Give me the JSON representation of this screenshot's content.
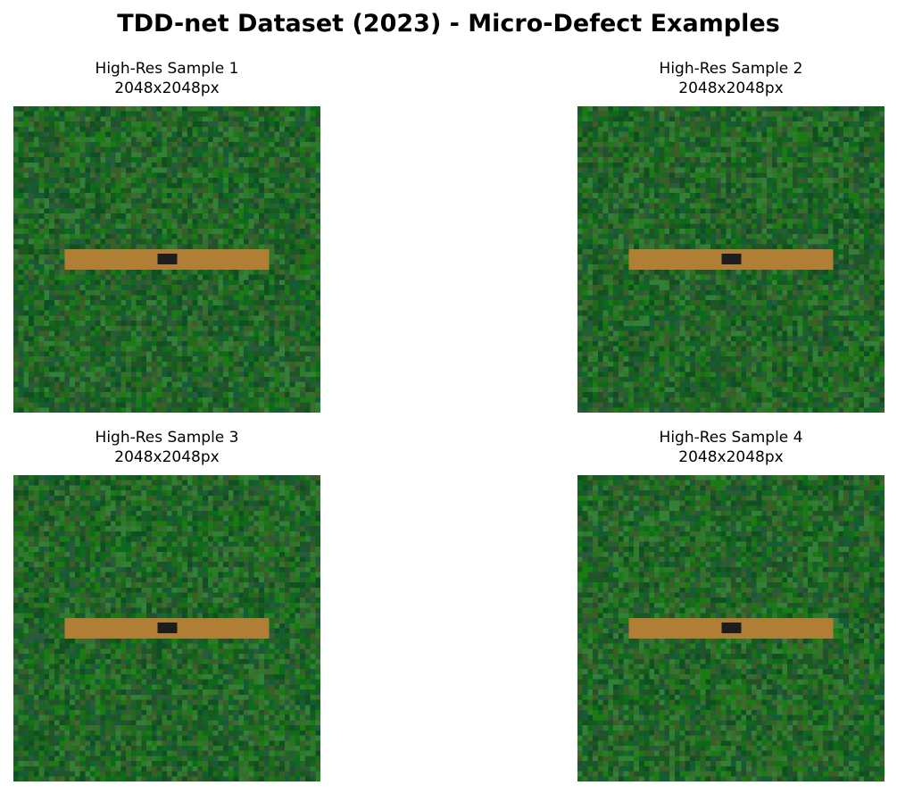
{
  "figure": {
    "title": "TDD-net Dataset (2023) - Micro-Defect Examples"
  },
  "colors": {
    "background_palette": [
      "#1f6b1c",
      "#165a1e",
      "#2c7a2a",
      "#0f4f21",
      "#3a6b2f",
      "#2a5a3a",
      "#1c7a14",
      "#145c35",
      "#3b5e28",
      "#0c6a1a",
      "#24502c",
      "#337f37"
    ],
    "trace": "#b07f35",
    "defect": "#1d1d1d"
  },
  "samples": [
    {
      "title": "High-Res Sample 1",
      "resolution": "2048x2048px"
    },
    {
      "title": "High-Res Sample 2",
      "resolution": "2048x2048px"
    },
    {
      "title": "High-Res Sample 3",
      "resolution": "2048x2048px"
    },
    {
      "title": "High-Res Sample 4",
      "resolution": "2048x2048px"
    }
  ]
}
